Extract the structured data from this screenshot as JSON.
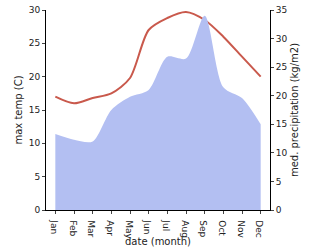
{
  "chart_data": {
    "type": "line",
    "x_label": "date (month)",
    "y_label": "max temp (C)",
    "y2_label": "med. precipitation (kg/m2)",
    "categories": [
      "Jan",
      "Feb",
      "Mar",
      "Apr",
      "May",
      "Jun",
      "Jul",
      "Aug",
      "Sep",
      "Oct",
      "Nov",
      "Dec"
    ],
    "series": [
      {
        "name": "med. precipitation (kg/m2)",
        "type": "area",
        "axis": "y2",
        "color": "#b3bff2",
        "values": [
          13.3,
          12.3,
          12,
          17.5,
          19.8,
          21,
          26.8,
          26.5,
          34,
          21.5,
          19.6,
          15
        ]
      },
      {
        "name": "max temp (C)",
        "type": "line",
        "axis": "y",
        "color": "#c9594c",
        "values": [
          17,
          16,
          16.8,
          17.5,
          19.8,
          27,
          28.8,
          29.7,
          28.5,
          26,
          23,
          20
        ]
      }
    ],
    "ylim": [
      0,
      30
    ],
    "yticks": [
      0,
      5,
      10,
      15,
      20,
      25,
      30
    ],
    "y2lim": [
      0,
      35
    ],
    "y2ticks": [
      0,
      5,
      10,
      15,
      20,
      25,
      30,
      35
    ],
    "grid": false
  }
}
